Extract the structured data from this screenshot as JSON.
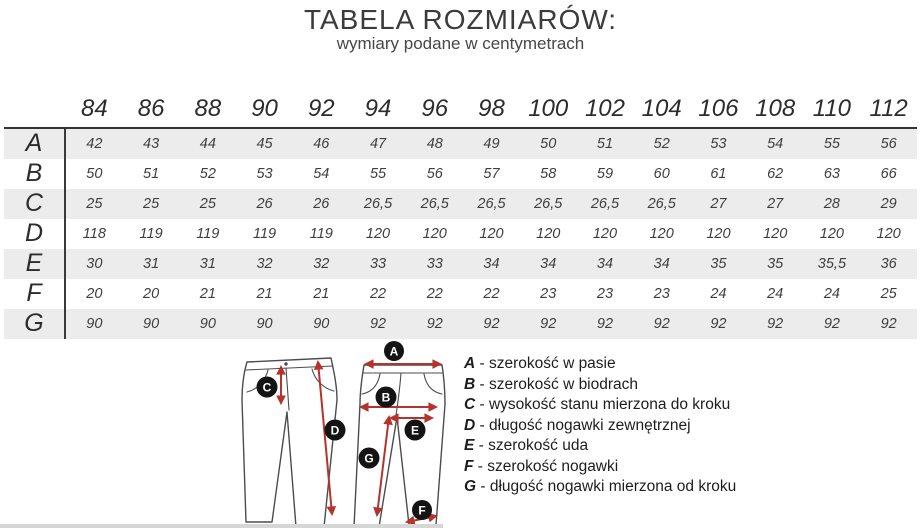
{
  "page": {
    "title": "TABELA ROZMIARÓW:",
    "subtitle": "wymiary podane w centymetrach"
  },
  "chart_data": {
    "type": "table",
    "title": "TABELA ROZMIARÓW:",
    "subtitle": "wymiary podane w centymetrach",
    "columns": [
      "84",
      "86",
      "88",
      "90",
      "92",
      "94",
      "96",
      "98",
      "100",
      "102",
      "104",
      "106",
      "108",
      "110",
      "112"
    ],
    "rows": [
      {
        "label": "A",
        "values": [
          "42",
          "43",
          "44",
          "45",
          "46",
          "47",
          "48",
          "49",
          "50",
          "51",
          "52",
          "53",
          "54",
          "55",
          "56"
        ]
      },
      {
        "label": "B",
        "values": [
          "50",
          "51",
          "52",
          "53",
          "54",
          "55",
          "56",
          "57",
          "58",
          "59",
          "60",
          "61",
          "62",
          "63",
          "66"
        ]
      },
      {
        "label": "C",
        "values": [
          "25",
          "25",
          "25",
          "26",
          "26",
          "26,5",
          "26,5",
          "26,5",
          "26,5",
          "26,5",
          "26,5",
          "27",
          "27",
          "28",
          "29"
        ]
      },
      {
        "label": "D",
        "values": [
          "118",
          "119",
          "119",
          "119",
          "119",
          "120",
          "120",
          "120",
          "120",
          "120",
          "120",
          "120",
          "120",
          "120",
          "120"
        ]
      },
      {
        "label": "E",
        "values": [
          "30",
          "31",
          "31",
          "32",
          "32",
          "33",
          "33",
          "34",
          "34",
          "34",
          "34",
          "35",
          "35",
          "35,5",
          "36"
        ]
      },
      {
        "label": "F",
        "values": [
          "20",
          "20",
          "21",
          "21",
          "21",
          "22",
          "22",
          "22",
          "23",
          "23",
          "23",
          "24",
          "24",
          "24",
          "25"
        ]
      },
      {
        "label": "G",
        "values": [
          "90",
          "90",
          "90",
          "90",
          "90",
          "92",
          "92",
          "92",
          "92",
          "92",
          "92",
          "92",
          "92",
          "92",
          "92"
        ]
      }
    ]
  },
  "legend": {
    "separator": "-",
    "items": [
      {
        "letter": "A",
        "description": "szerokość w pasie"
      },
      {
        "letter": "B",
        "description": "szerokość w biodrach"
      },
      {
        "letter": "C",
        "description": "wysokość stanu mierzona do kroku"
      },
      {
        "letter": "D",
        "description": "długość nogawki zewnętrznej"
      },
      {
        "letter": "E",
        "description": "szerokość uda"
      },
      {
        "letter": "F",
        "description": "szerokość nogawki"
      },
      {
        "letter": "G",
        "description": "długość nogawki mierzona od kroku"
      }
    ]
  },
  "diagram": {
    "markers": [
      {
        "label": "C"
      },
      {
        "label": "D"
      },
      {
        "label": "A"
      },
      {
        "label": "B"
      },
      {
        "label": "E"
      },
      {
        "label": "G"
      },
      {
        "label": "F"
      }
    ]
  },
  "colors": {
    "row_stripe": "#ececec",
    "table_border": "#333333",
    "table_text": "#2c2c2c",
    "arrow_red": "#b5332d",
    "badge_black": "#141414"
  }
}
